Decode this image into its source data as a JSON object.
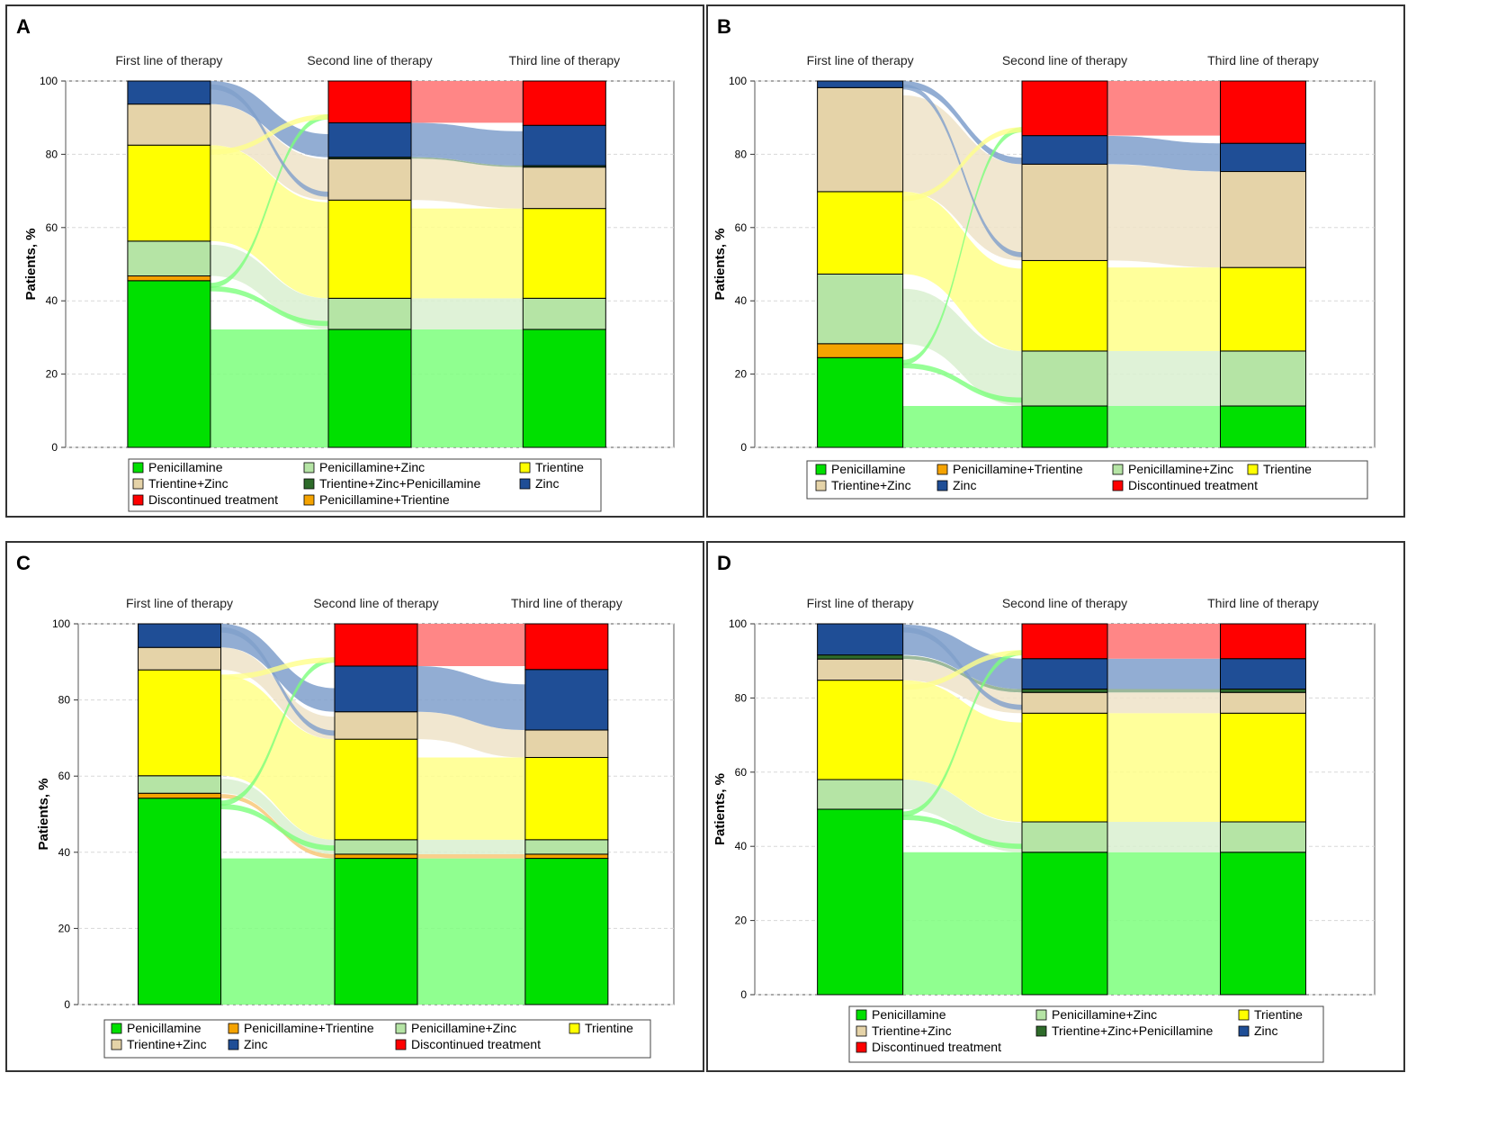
{
  "figure": {
    "colors": {
      "Penicillamine": "#00e000",
      "Penicillamine+Zinc": "#b5e4a5",
      "Trientine": "#ffff00",
      "Trientine+Zinc": "#e5d3a8",
      "Trientine+Zinc+Penicillamine": "#2e6b2a",
      "Zinc": "#1f4e96",
      "Discontinued treatment": "#ff0000",
      "Penicillamine+Trientine": "#f5a300"
    },
    "link_colors": {
      "Penicillamine": "#7cff7c",
      "Penicillamine+Zinc": "#d9f0d0",
      "Trientine": "#ffff8a",
      "Trientine+Zinc": "#efe3c8",
      "Trientine+Zinc+Penicillamine": "#8aab88",
      "Zinc": "#7f9fcb",
      "Discontinued treatment": "#ff7f7f",
      "Penicillamine+Trientine": "#f8c878"
    }
  },
  "chart_data": [
    {
      "panel": "A",
      "type": "sankey-stacked-bar",
      "ylabel": "Patients, %",
      "ylim": [
        0,
        100
      ],
      "yticks": [
        0,
        20,
        40,
        60,
        80,
        100
      ],
      "stages": [
        "First line of therapy",
        "Second line of therapy",
        "Third line of therapy"
      ],
      "stack_order": [
        "Penicillamine",
        "Penicillamine+Trientine",
        "Penicillamine+Zinc",
        "Trientine",
        "Trientine+Zinc",
        "Trientine+Zinc+Penicillamine",
        "Zinc",
        "Discontinued treatment"
      ],
      "values": [
        {
          "Penicillamine": 45.5,
          "Penicillamine+Trientine": 1.3,
          "Penicillamine+Zinc": 9.5,
          "Trientine": 26.2,
          "Trientine+Zinc": 11.2,
          "Zinc": 6.3
        },
        {
          "Penicillamine": 32.2,
          "Penicillamine+Zinc": 8.5,
          "Trientine": 26.8,
          "Trientine+Zinc": 11.3,
          "Trientine+Zinc+Penicillamine": 0.4,
          "Zinc": 9.4,
          "Discontinued treatment": 11.4
        },
        {
          "Penicillamine": 32.2,
          "Penicillamine+Zinc": 8.5,
          "Trientine": 24.5,
          "Trientine+Zinc": 11.3,
          "Trientine+Zinc+Penicillamine": 0.4,
          "Zinc": 11.0,
          "Discontinued treatment": 12.1
        }
      ],
      "legend": [
        "Penicillamine",
        "Penicillamine+Zinc",
        "Trientine",
        "Trientine+Zinc",
        "Trientine+Zinc+Penicillamine",
        "Zinc",
        "Discontinued treatment",
        "Penicillamine+Trientine"
      ],
      "legend_columns": 3
    },
    {
      "panel": "B",
      "type": "sankey-stacked-bar",
      "ylabel": "Patients, %",
      "ylim": [
        0,
        100
      ],
      "yticks": [
        0,
        20,
        40,
        60,
        80,
        100
      ],
      "stages": [
        "First line of therapy",
        "Second line of therapy",
        "Third line of therapy"
      ],
      "stack_order": [
        "Penicillamine",
        "Penicillamine+Trientine",
        "Penicillamine+Zinc",
        "Trientine",
        "Trientine+Zinc",
        "Zinc",
        "Discontinued treatment"
      ],
      "values": [
        {
          "Penicillamine": 24.5,
          "Penicillamine+Trientine": 3.8,
          "Penicillamine+Zinc": 19.0,
          "Trientine": 22.5,
          "Trientine+Zinc": 28.4,
          "Zinc": 1.8
        },
        {
          "Penicillamine": 11.3,
          "Penicillamine+Zinc": 15.0,
          "Trientine": 24.7,
          "Trientine+Zinc": 26.3,
          "Zinc": 7.8,
          "Discontinued treatment": 14.9
        },
        {
          "Penicillamine": 11.3,
          "Penicillamine+Zinc": 15.0,
          "Trientine": 22.8,
          "Trientine+Zinc": 26.2,
          "Zinc": 7.7,
          "Discontinued treatment": 17.0
        }
      ],
      "legend": [
        "Penicillamine",
        "Penicillamine+Trientine",
        "Penicillamine+Zinc",
        "Trientine",
        "Trientine+Zinc",
        "Zinc",
        "Discontinued treatment"
      ],
      "legend_columns": 4
    },
    {
      "panel": "C",
      "type": "sankey-stacked-bar",
      "ylabel": "Patients, %",
      "ylim": [
        0,
        100
      ],
      "yticks": [
        0,
        20,
        40,
        60,
        80,
        100
      ],
      "stages": [
        "First line of therapy",
        "Second line of therapy",
        "Third line of therapy"
      ],
      "stack_order": [
        "Penicillamine",
        "Penicillamine+Trientine",
        "Penicillamine+Zinc",
        "Trientine",
        "Trientine+Zinc",
        "Zinc",
        "Discontinued treatment"
      ],
      "values": [
        {
          "Penicillamine": 54.2,
          "Penicillamine+Trientine": 1.3,
          "Penicillamine+Zinc": 4.6,
          "Trientine": 27.8,
          "Trientine+Zinc": 5.9,
          "Zinc": 6.2
        },
        {
          "Penicillamine": 38.4,
          "Penicillamine+Trientine": 1.1,
          "Penicillamine+Zinc": 3.8,
          "Trientine": 26.4,
          "Trientine+Zinc": 7.2,
          "Zinc": 12.0,
          "Discontinued treatment": 11.1
        },
        {
          "Penicillamine": 38.4,
          "Penicillamine+Trientine": 1.1,
          "Penicillamine+Zinc": 3.8,
          "Trientine": 21.6,
          "Trientine+Zinc": 7.2,
          "Zinc": 15.9,
          "Discontinued treatment": 12.0
        }
      ],
      "legend": [
        "Penicillamine",
        "Penicillamine+Trientine",
        "Penicillamine+Zinc",
        "Trientine",
        "Trientine+Zinc",
        "Zinc",
        "Discontinued treatment"
      ],
      "legend_columns": 4
    },
    {
      "panel": "D",
      "type": "sankey-stacked-bar",
      "ylabel": "Patients, %",
      "ylim": [
        0,
        100
      ],
      "yticks": [
        0,
        20,
        40,
        60,
        80,
        100
      ],
      "stages": [
        "First line of therapy",
        "Second line of therapy",
        "Third line of therapy"
      ],
      "stack_order": [
        "Penicillamine",
        "Penicillamine+Zinc",
        "Trientine",
        "Trientine+Zinc",
        "Trientine+Zinc+Penicillamine",
        "Zinc",
        "Discontinued treatment"
      ],
      "values": [
        {
          "Penicillamine": 50.0,
          "Penicillamine+Zinc": 8.0,
          "Trientine": 26.8,
          "Trientine+Zinc": 5.7,
          "Trientine+Zinc+Penicillamine": 1.1,
          "Zinc": 8.4
        },
        {
          "Penicillamine": 38.4,
          "Penicillamine+Zinc": 8.2,
          "Trientine": 29.3,
          "Trientine+Zinc": 5.6,
          "Trientine+Zinc+Penicillamine": 0.9,
          "Zinc": 8.2,
          "Discontinued treatment": 9.4
        },
        {
          "Penicillamine": 38.4,
          "Penicillamine+Zinc": 8.2,
          "Trientine": 29.3,
          "Trientine+Zinc": 5.6,
          "Trientine+Zinc+Penicillamine": 0.9,
          "Zinc": 8.2,
          "Discontinued treatment": 9.4
        }
      ],
      "legend": [
        "Penicillamine",
        "Penicillamine+Zinc",
        "Trientine",
        "Trientine+Zinc",
        "Trientine+Zinc+Penicillamine",
        "Zinc",
        "Discontinued treatment"
      ],
      "legend_columns": 3
    }
  ]
}
